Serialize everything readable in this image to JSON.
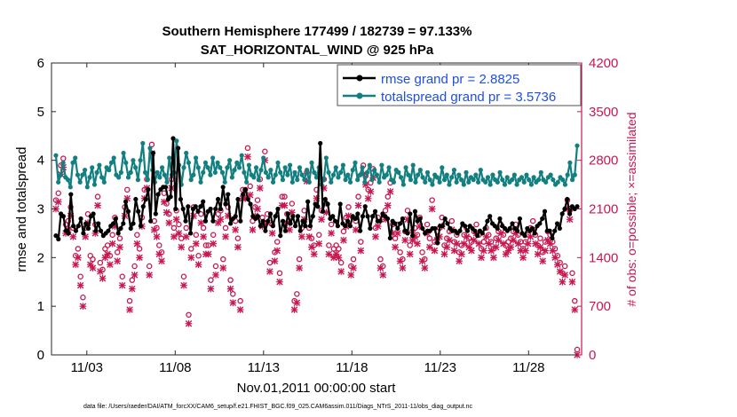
{
  "chart_data": {
    "type": "line",
    "title_line1": "Southern Hemisphere 177499 / 182739 = 97.133%",
    "title_line2": "SAT_HORIZONTAL_WIND @ 925 hPa",
    "xlabel": "Nov.01,2011 00:00:00 start",
    "ylabel_left": "rmse and totalspread",
    "ylabel_right": "# of obs: o=possible; ×=assimilated",
    "footnote": "data file: /Users/raeder/DAI/ATM_forcXX/CAM6_setup/f.e21.FHIST_BGC.f09_025.CAM6assim.011/Diags_NTrS_2011-11/obs_diag_output.nc",
    "xlim": [
      1.0,
      31.0
    ],
    "ylim_left": [
      0,
      6
    ],
    "ylim_right": [
      0,
      4200
    ],
    "x_ticks": [
      3,
      8,
      13,
      18,
      23,
      28
    ],
    "x_tick_labels": [
      "11/03",
      "11/08",
      "11/13",
      "11/18",
      "11/23",
      "11/28"
    ],
    "y_ticks_left": [
      "0",
      "1",
      "2",
      "3",
      "4",
      "5",
      "6"
    ],
    "y_ticks_right": [
      "0",
      "700",
      "1400",
      "2100",
      "2800",
      "3500",
      "4200"
    ],
    "colors": {
      "rmse": "#000000",
      "spread": "#127f80",
      "obs": "#c8174f",
      "legend_text": "#1f4fe0"
    },
    "series": [
      {
        "name": "rmse grand pr = 2.8825",
        "axis": "left",
        "color": "#000000",
        "marker": "circle",
        "values": [
          2.45,
          2.38,
          2.9,
          2.85,
          2.55,
          2.5,
          3.3,
          2.65,
          2.55,
          2.65,
          2.8,
          2.5,
          2.7,
          2.6,
          2.85,
          2.9,
          2.55,
          2.7,
          2.55,
          2.45,
          2.5,
          2.55,
          2.65,
          2.7,
          2.8,
          2.5,
          2.6,
          2.7,
          3.15,
          2.95,
          2.6,
          2.7,
          3.2,
          2.95,
          2.65,
          3.05,
          3.2,
          3.4,
          2.75,
          4.15,
          2.9,
          3.3,
          3.4,
          3.45,
          3.45,
          3.2,
          3.25,
          4.45,
          3.0,
          4.25,
          3.2,
          3.0,
          2.75,
          3.05,
          2.5,
          3.0,
          3.05,
          2.95,
          3.05,
          3.15,
          2.75,
          2.95,
          3.0,
          2.75,
          3.0,
          3.2,
          3.0,
          3.45,
          3.1,
          3.3,
          2.7,
          2.8,
          2.85,
          3.2,
          2.75,
          3.3,
          3.4,
          3.2,
          3.1,
          2.85,
          2.8,
          2.85,
          2.65,
          2.75,
          2.55,
          2.75,
          2.9,
          2.65,
          2.85,
          3.0,
          2.45,
          2.75,
          2.55,
          2.9,
          2.7,
          2.85,
          2.65,
          2.85,
          2.55,
          2.75,
          2.65,
          3.15,
          2.65,
          2.85,
          3.1,
          3.05,
          4.35,
          2.95,
          3.2,
          3.1,
          2.8,
          2.85,
          2.75,
          2.65,
          3.1,
          2.7,
          2.65,
          2.75,
          2.65,
          2.85,
          2.8,
          2.9,
          2.55,
          2.85,
          3.05,
          2.85,
          2.6,
          2.85,
          2.95,
          2.75,
          2.75,
          2.9,
          2.85,
          2.8,
          2.4,
          2.75,
          2.7,
          2.6,
          2.7,
          2.8,
          2.55,
          2.5,
          2.9,
          2.45,
          2.95,
          2.75,
          2.8,
          2.6,
          2.5,
          2.55,
          2.55,
          2.6,
          2.6,
          2.3,
          2.65,
          2.65,
          2.8,
          2.7,
          2.6,
          2.55,
          2.55,
          2.5,
          2.55,
          2.7,
          2.65,
          2.55,
          2.65,
          2.6,
          2.55,
          2.45,
          2.55,
          2.5,
          2.6,
          2.75,
          2.85,
          2.7,
          2.65,
          2.6,
          2.8,
          2.65,
          2.6,
          2.55,
          2.6,
          2.7,
          2.6,
          2.55,
          2.8,
          2.5,
          2.45,
          2.6,
          2.55,
          2.6,
          2.5,
          2.65,
          2.7,
          2.8,
          2.95,
          2.55,
          2.55,
          2.4,
          2.55,
          2.7,
          2.6,
          2.9,
          3.0,
          3.2,
          2.9,
          3.05,
          3.0,
          3.05
        ]
      },
      {
        "name": "totalspread grand pr = 3.5736",
        "axis": "left",
        "color": "#127f80",
        "marker": "circle",
        "values": [
          4.1,
          3.55,
          3.7,
          3.95,
          3.65,
          3.6,
          3.45,
          3.95,
          4.05,
          3.7,
          3.55,
          3.7,
          3.8,
          3.45,
          3.65,
          3.85,
          3.5,
          3.75,
          3.9,
          3.65,
          3.55,
          3.85,
          3.8,
          3.95,
          4.05,
          3.7,
          3.65,
          3.75,
          4.15,
          3.95,
          3.65,
          3.75,
          4.0,
          3.85,
          3.6,
          4.0,
          4.35,
          3.75,
          3.6,
          4.25,
          3.8,
          3.55,
          3.75,
          3.65,
          3.85,
          3.7,
          3.55,
          4.05,
          3.7,
          3.75,
          4.4,
          3.9,
          3.5,
          3.85,
          4.15,
          3.95,
          3.6,
          3.7,
          4.05,
          3.85,
          3.55,
          3.75,
          3.95,
          3.85,
          3.7,
          4.05,
          3.75,
          3.95,
          3.85,
          3.75,
          3.55,
          3.85,
          4.0,
          3.65,
          3.8,
          3.95,
          3.85,
          4.1,
          3.75,
          3.55,
          3.9,
          3.7,
          3.65,
          3.85,
          3.6,
          3.8,
          4.05,
          3.75,
          3.65,
          3.8,
          3.55,
          3.7,
          3.95,
          3.75,
          3.6,
          3.85,
          3.7,
          3.9,
          3.55,
          3.75,
          3.6,
          3.85,
          3.7,
          3.6,
          3.8,
          3.55,
          3.95,
          3.75,
          3.65,
          3.85,
          3.5,
          3.6,
          4.05,
          3.75,
          3.55,
          3.7,
          3.85,
          3.65,
          3.75,
          3.9,
          3.6,
          3.7,
          3.55,
          3.8,
          3.95,
          3.6,
          3.7,
          3.85,
          3.55,
          3.75,
          3.9,
          3.6,
          3.8,
          3.7,
          3.55,
          3.9,
          3.65,
          3.7,
          3.85,
          3.6,
          3.55,
          3.8,
          3.75,
          3.65,
          3.5,
          3.85,
          3.7,
          3.6,
          3.9,
          3.55,
          3.7,
          3.8,
          3.65,
          3.55,
          3.75,
          3.6,
          3.5,
          3.7,
          3.65,
          3.55,
          3.85,
          3.6,
          3.7,
          3.5,
          3.65,
          3.8,
          3.55,
          3.7,
          3.6,
          3.5,
          3.75,
          3.55,
          3.65,
          3.6,
          3.7,
          3.55,
          3.8,
          3.6,
          3.55,
          3.65,
          3.5,
          3.7,
          3.6,
          3.55,
          3.75,
          3.6,
          3.5,
          3.65,
          3.55,
          3.6,
          3.7,
          3.5,
          3.6,
          3.65,
          3.55,
          3.7,
          3.6,
          3.5,
          3.65,
          3.55,
          3.6,
          3.75,
          3.6,
          3.55,
          3.65,
          3.7,
          3.6,
          3.5,
          3.55,
          3.65,
          3.6,
          3.5,
          3.7,
          3.95,
          3.6,
          3.7,
          4.3
        ]
      },
      {
        "name": "obs possible",
        "axis": "right",
        "marker": "o",
        "values": [
          2150,
          2250,
          2650,
          2750,
          1800,
          1850,
          2050,
          1750,
          1350,
          1450,
          1050,
          750,
          1750,
          1950,
          1350,
          1300,
          1800,
          2200,
          1250,
          1150,
          1450,
          1500,
          1350,
          1650,
          1900,
          1400,
          1600,
          1050,
          2050,
          2300,
          700,
          1000,
          1200,
          1650,
          1450,
          1900,
          2300,
          2450,
          1200,
          2950,
          1850,
          1750,
          1500,
          1400,
          2250,
          2100,
          1950,
          2450,
          1750,
          2000,
          1800,
          1600,
          1050,
          1750,
          500,
          1450,
          2050,
          1650,
          1350,
          1950,
          1750,
          1500,
          1500,
          1000,
          1650,
          1200,
          1950,
          2000,
          1300,
          1750,
          2050,
          1000,
          800,
          1850,
          1600,
          700,
          2300,
          2300,
          2900,
          2350,
          1850,
          2050,
          2150,
          2450,
          1900,
          2850,
          1950,
          1250,
          1800,
          1400,
          1550,
          1100,
          2200,
          2200,
          1950,
          1850,
          2100,
          700,
          800,
          1300,
          1750,
          2000,
          2550,
          1750,
          1600,
          1500,
          2300,
          1650,
          2000,
          2450,
          2100,
          1500,
          1800,
          1450,
          1500,
          1450,
          1250,
          1700,
          1900,
          2050,
          1200,
          1300,
          1850,
          2200,
          1550,
          2650,
          2500,
          2300,
          2400,
          2600,
          1750,
          1900,
          1300,
          1200,
          2000,
          2200,
          2400,
          1800,
          1600,
          1800,
          1400,
          1300,
          1700,
          2000,
          1500,
          1700,
          1750,
          1650,
          1900,
          1400,
          1300,
          1800,
          1600,
          2150,
          1550,
          1700,
          1750,
          1900,
          1500,
          1600,
          1700,
          1850,
          1550,
          1650,
          1400,
          1500,
          1650,
          1750,
          1600,
          1550,
          1700,
          1800,
          1650,
          1450,
          1550,
          1750,
          1650,
          1550,
          1450,
          1600,
          1700,
          1800,
          1650,
          1500,
          1550,
          1600,
          1700,
          1800,
          1650,
          1550,
          1450,
          1550,
          1650,
          1750,
          1850,
          1650,
          1500,
          1600,
          1400,
          1550,
          1700,
          1650,
          1550,
          1450,
          1350,
          1250,
          1100,
          1200,
          2150,
          2000,
          1100,
          700,
          0
        ]
      },
      {
        "name": "obs assimilated",
        "axis": "right",
        "marker": "x",
        "values": [
          2100,
          2200,
          2600,
          2700,
          1750,
          1800,
          2000,
          1700,
          1300,
          1400,
          1000,
          700,
          1700,
          1900,
          1300,
          1250,
          1750,
          2150,
          1200,
          1100,
          1400,
          1450,
          1300,
          1600,
          1850,
          1350,
          1550,
          1000,
          2000,
          2250,
          650,
          950,
          1150,
          1600,
          1400,
          1850,
          2250,
          2400,
          1150,
          2900,
          1800,
          1700,
          1450,
          1350,
          2200,
          2050,
          1900,
          2400,
          1700,
          1950,
          1750,
          1550,
          1000,
          1700,
          450,
          1400,
          2000,
          1600,
          1300,
          1900,
          1700,
          1450,
          1450,
          950,
          1600,
          1150,
          1900,
          1950,
          1250,
          1700,
          2000,
          950,
          750,
          1800,
          1550,
          650,
          2250,
          2250,
          2850,
          2300,
          1800,
          2000,
          2100,
          2400,
          1850,
          2800,
          1900,
          1200,
          1750,
          1350,
          1500,
          1050,
          2150,
          2150,
          1900,
          1800,
          2050,
          650,
          750,
          1250,
          1700,
          1950,
          2500,
          1700,
          1550,
          1450,
          2250,
          1600,
          1950,
          2400,
          2050,
          1450,
          1750,
          1400,
          1450,
          1400,
          1200,
          1650,
          1850,
          2000,
          1150,
          1250,
          1800,
          2150,
          1500,
          2600,
          2450,
          2250,
          2350,
          2550,
          1700,
          1850,
          1250,
          1150,
          1950,
          2150,
          2350,
          1750,
          1550,
          1750,
          1350,
          1250,
          1650,
          1950,
          1450,
          1650,
          1700,
          1600,
          1850,
          1350,
          1250,
          1750,
          1550,
          2100,
          1500,
          1650,
          1700,
          1850,
          1450,
          1550,
          1650,
          1800,
          1500,
          1600,
          1350,
          1450,
          1600,
          1700,
          1550,
          1500,
          1650,
          1750,
          1600,
          1400,
          1500,
          1700,
          1600,
          1500,
          1400,
          1550,
          1650,
          1750,
          1600,
          1450,
          1500,
          1550,
          1650,
          1750,
          1600,
          1500,
          1400,
          1500,
          1600,
          1700,
          1800,
          1600,
          1450,
          1550,
          1350,
          1500,
          1650,
          1600,
          1500,
          1400,
          1300,
          1200,
          1050,
          1150,
          2100,
          1950,
          1050,
          650,
          0
        ]
      }
    ]
  }
}
